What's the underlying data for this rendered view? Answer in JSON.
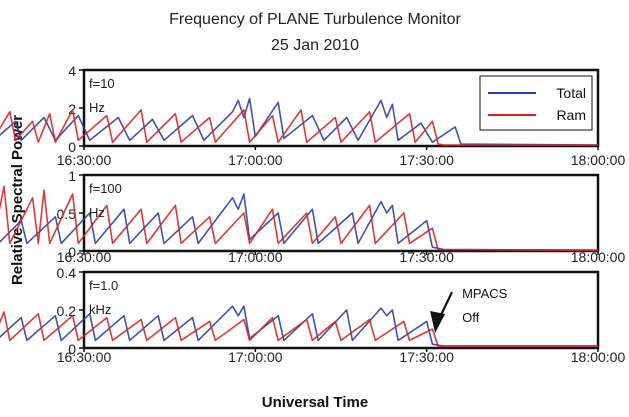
{
  "chart_data": [
    {
      "type": "line",
      "title": "Frequency of PLANE Turbulence Monitor",
      "subtitle": "25 Jan 2010",
      "panel_label": [
        "f=10",
        "Hz"
      ],
      "ylabel": "Relative Spectral Power",
      "xlabel": "Universal Time",
      "ylim": [
        0,
        4
      ],
      "yticks": [
        "4",
        "2",
        "0"
      ],
      "xlim_minutes": [
        990,
        1080
      ],
      "xticks": [
        "16:30:00",
        "17:00:00",
        "17:30:00",
        "18:00:00"
      ],
      "legend": {
        "placement": "top-right",
        "entries": [
          "Total",
          "Ram"
        ]
      },
      "series": [
        {
          "name": "Total",
          "color": "#2b3ea8",
          "points": [
            [
              "16:12:00",
              0.15
            ],
            [
              "16:14:00",
              2.1
            ],
            [
              "16:15:00",
              0.5
            ],
            [
              "16:18:00",
              1.3
            ],
            [
              "16:19:00",
              0.3
            ],
            [
              "16:23:00",
              1.5
            ],
            [
              "16:25:00",
              0.3
            ],
            [
              "16:29:00",
              1.6
            ],
            [
              "16:31:00",
              0.3
            ],
            [
              "16:36:00",
              1.5
            ],
            [
              "16:38:00",
              0.3
            ],
            [
              "16:42:00",
              1.4
            ],
            [
              "16:44:00",
              0.3
            ],
            [
              "16:49:00",
              1.6
            ],
            [
              "16:51:00",
              0.3
            ],
            [
              "16:56:00",
              1.8
            ],
            [
              "16:57:00",
              2.4
            ],
            [
              "16:58:00",
              1.5
            ],
            [
              "16:59:00",
              2.5
            ],
            [
              "17:00:00",
              0.5
            ],
            [
              "17:04:00",
              2.3
            ],
            [
              "17:05:00",
              0.4
            ],
            [
              "17:10:00",
              1.6
            ],
            [
              "17:12:00",
              0.3
            ],
            [
              "17:16:00",
              1.5
            ],
            [
              "17:18:00",
              0.3
            ],
            [
              "17:22:00",
              2.4
            ],
            [
              "17:23:00",
              1.5
            ],
            [
              "17:24:00",
              2.2
            ],
            [
              "17:25:00",
              0.3
            ],
            [
              "17:29:00",
              1.2
            ],
            [
              "17:31:00",
              0.2
            ],
            [
              "17:35:00",
              1.0
            ],
            [
              "17:36:00",
              0.1
            ],
            [
              "18:00:00",
              0.05
            ]
          ]
        },
        {
          "name": "Ram",
          "color": "#e02020",
          "points": [
            [
              "16:12:00",
              0.2
            ],
            [
              "16:13:00",
              2.0
            ],
            [
              "16:14:00",
              0.3
            ],
            [
              "16:17:00",
              1.8
            ],
            [
              "16:18:00",
              0.3
            ],
            [
              "16:21:00",
              1.3
            ],
            [
              "16:22:00",
              0.2
            ],
            [
              "16:24:00",
              1.7
            ],
            [
              "16:25:00",
              0.2
            ],
            [
              "16:28:00",
              1.9
            ],
            [
              "16:29:00",
              0.3
            ],
            [
              "16:34:00",
              1.6
            ],
            [
              "16:35:00",
              0.2
            ],
            [
              "16:40:00",
              1.9
            ],
            [
              "16:41:00",
              0.2
            ],
            [
              "16:46:00",
              1.7
            ],
            [
              "16:47:00",
              0.2
            ],
            [
              "16:52:00",
              1.5
            ],
            [
              "16:53:00",
              0.2
            ],
            [
              "16:58:00",
              1.9
            ],
            [
              "16:59:00",
              0.2
            ],
            [
              "17:03:00",
              1.6
            ],
            [
              "17:04:00",
              0.2
            ],
            [
              "17:08:00",
              1.9
            ],
            [
              "17:09:00",
              0.2
            ],
            [
              "17:14:00",
              1.5
            ],
            [
              "17:15:00",
              0.2
            ],
            [
              "17:20:00",
              1.8
            ],
            [
              "17:21:00",
              0.2
            ],
            [
              "17:27:00",
              1.7
            ],
            [
              "17:28:00",
              0.2
            ],
            [
              "17:31:00",
              1.3
            ],
            [
              "17:32:00",
              0.1
            ],
            [
              "17:33:00",
              0.05
            ],
            [
              "18:00:00",
              0.05
            ]
          ]
        }
      ]
    },
    {
      "type": "line",
      "panel_label": [
        "f=100",
        "Hz"
      ],
      "ylim": [
        0,
        1
      ],
      "yticks": [
        "1",
        "0.5",
        "0"
      ],
      "xlim_minutes": [
        990,
        1080
      ],
      "xticks": [
        "16:30:00",
        "17:00:00",
        "17:30:00",
        "18:00:00"
      ],
      "series": [
        {
          "color": "#2b3ea8",
          "points": [
            [
              "16:12:00",
              0.05
            ],
            [
              "16:14:00",
              0.55
            ],
            [
              "16:15:00",
              0.1
            ],
            [
              "16:19:00",
              0.4
            ],
            [
              "16:20:00",
              0.1
            ],
            [
              "16:25:00",
              0.45
            ],
            [
              "16:26:00",
              0.1
            ],
            [
              "16:31:00",
              0.5
            ],
            [
              "16:32:00",
              0.1
            ],
            [
              "16:37:00",
              0.55
            ],
            [
              "16:38:00",
              0.1
            ],
            [
              "16:43:00",
              0.5
            ],
            [
              "16:44:00",
              0.1
            ],
            [
              "16:49:00",
              0.45
            ],
            [
              "16:50:00",
              0.1
            ],
            [
              "16:56:00",
              0.7
            ],
            [
              "16:57:00",
              0.55
            ],
            [
              "16:58:00",
              0.75
            ],
            [
              "16:59:00",
              0.15
            ],
            [
              "17:04:00",
              0.5
            ],
            [
              "17:05:00",
              0.1
            ],
            [
              "17:10:00",
              0.55
            ],
            [
              "17:11:00",
              0.1
            ],
            [
              "17:17:00",
              0.5
            ],
            [
              "17:18:00",
              0.1
            ],
            [
              "17:22:00",
              0.65
            ],
            [
              "17:23:00",
              0.5
            ],
            [
              "17:24:00",
              0.6
            ],
            [
              "17:25:00",
              0.1
            ],
            [
              "17:30:00",
              0.4
            ],
            [
              "17:31:00",
              0.05
            ],
            [
              "17:33:00",
              0.02
            ],
            [
              "18:00:00",
              0.01
            ]
          ]
        },
        {
          "color": "#e02020",
          "points": [
            [
              "16:12:00",
              0.05
            ],
            [
              "16:13:00",
              0.6
            ],
            [
              "16:14:00",
              0.1
            ],
            [
              "16:16:00",
              0.85
            ],
            [
              "16:17:00",
              0.1
            ],
            [
              "16:21:00",
              0.7
            ],
            [
              "16:22:00",
              0.1
            ],
            [
              "16:23:00",
              0.8
            ],
            [
              "16:24:00",
              0.1
            ],
            [
              "16:28:00",
              0.75
            ],
            [
              "16:29:00",
              0.1
            ],
            [
              "16:34:00",
              0.6
            ],
            [
              "16:35:00",
              0.1
            ],
            [
              "16:40:00",
              0.55
            ],
            [
              "16:41:00",
              0.1
            ],
            [
              "16:46:00",
              0.6
            ],
            [
              "16:47:00",
              0.1
            ],
            [
              "16:52:00",
              0.45
            ],
            [
              "16:53:00",
              0.1
            ],
            [
              "16:58:00",
              0.5
            ],
            [
              "16:59:00",
              0.1
            ],
            [
              "17:03:00",
              0.55
            ],
            [
              "17:04:00",
              0.1
            ],
            [
              "17:09:00",
              0.5
            ],
            [
              "17:10:00",
              0.1
            ],
            [
              "17:14:00",
              0.45
            ],
            [
              "17:15:00",
              0.1
            ],
            [
              "17:20:00",
              0.6
            ],
            [
              "17:21:00",
              0.1
            ],
            [
              "17:26:00",
              0.5
            ],
            [
              "17:27:00",
              0.1
            ],
            [
              "17:31:00",
              0.3
            ],
            [
              "17:32:00",
              0.02
            ],
            [
              "18:00:00",
              0.01
            ]
          ]
        }
      ]
    },
    {
      "type": "line",
      "panel_label": [
        "f=1.0",
        "kHz"
      ],
      "ylim": [
        0,
        0.4
      ],
      "yticks": [
        "0.4",
        "0.2",
        "0"
      ],
      "xlim_minutes": [
        990,
        1080
      ],
      "xticks": [
        "16:30:00",
        "17:00:00",
        "17:30:00",
        "18:00:00"
      ],
      "annotation": {
        "text": [
          "MPACS",
          "Off"
        ],
        "at_time": "17:32:00"
      },
      "series": [
        {
          "color": "#2b3ea8",
          "points": [
            [
              "16:12:00",
              0.03
            ],
            [
              "16:14:00",
              0.18
            ],
            [
              "16:15:00",
              0.05
            ],
            [
              "16:19:00",
              0.16
            ],
            [
              "16:20:00",
              0.04
            ],
            [
              "16:25:00",
              0.17
            ],
            [
              "16:26:00",
              0.04
            ],
            [
              "16:31:00",
              0.18
            ],
            [
              "16:32:00",
              0.04
            ],
            [
              "16:37:00",
              0.17
            ],
            [
              "16:38:00",
              0.04
            ],
            [
              "16:43:00",
              0.17
            ],
            [
              "16:44:00",
              0.04
            ],
            [
              "16:49:00",
              0.16
            ],
            [
              "16:50:00",
              0.04
            ],
            [
              "16:56:00",
              0.22
            ],
            [
              "16:57:00",
              0.17
            ],
            [
              "16:58:00",
              0.22
            ],
            [
              "16:59:00",
              0.05
            ],
            [
              "17:04:00",
              0.17
            ],
            [
              "17:05:00",
              0.04
            ],
            [
              "17:10:00",
              0.18
            ],
            [
              "17:11:00",
              0.04
            ],
            [
              "17:16:00",
              0.2
            ],
            [
              "17:17:00",
              0.04
            ],
            [
              "17:22:00",
              0.21
            ],
            [
              "17:23:00",
              0.17
            ],
            [
              "17:24:00",
              0.2
            ],
            [
              "17:25:00",
              0.04
            ],
            [
              "17:30:00",
              0.14
            ],
            [
              "17:31:00",
              0.02
            ],
            [
              "17:33:00",
              0.01
            ],
            [
              "18:00:00",
              0.01
            ]
          ]
        },
        {
          "color": "#e02020",
          "points": [
            [
              "16:12:00",
              0.03
            ],
            [
              "16:13:00",
              0.18
            ],
            [
              "16:14:00",
              0.04
            ],
            [
              "16:16:00",
              0.19
            ],
            [
              "16:17:00",
              0.04
            ],
            [
              "16:22:00",
              0.18
            ],
            [
              "16:23:00",
              0.04
            ],
            [
              "16:28:00",
              0.17
            ],
            [
              "16:29:00",
              0.04
            ],
            [
              "16:34:00",
              0.16
            ],
            [
              "16:35:00",
              0.04
            ],
            [
              "16:40:00",
              0.15
            ],
            [
              "16:41:00",
              0.04
            ],
            [
              "16:46:00",
              0.16
            ],
            [
              "16:47:00",
              0.04
            ],
            [
              "16:52:00",
              0.14
            ],
            [
              "16:53:00",
              0.04
            ],
            [
              "16:58:00",
              0.15
            ],
            [
              "16:59:00",
              0.04
            ],
            [
              "17:03:00",
              0.16
            ],
            [
              "17:04:00",
              0.04
            ],
            [
              "17:09:00",
              0.15
            ],
            [
              "17:10:00",
              0.04
            ],
            [
              "17:14:00",
              0.14
            ],
            [
              "17:15:00",
              0.04
            ],
            [
              "17:20:00",
              0.15
            ],
            [
              "17:21:00",
              0.04
            ],
            [
              "17:26:00",
              0.14
            ],
            [
              "17:27:00",
              0.04
            ],
            [
              "17:31:00",
              0.1
            ],
            [
              "17:32:00",
              0.01
            ],
            [
              "18:00:00",
              0.01
            ]
          ]
        }
      ]
    }
  ]
}
